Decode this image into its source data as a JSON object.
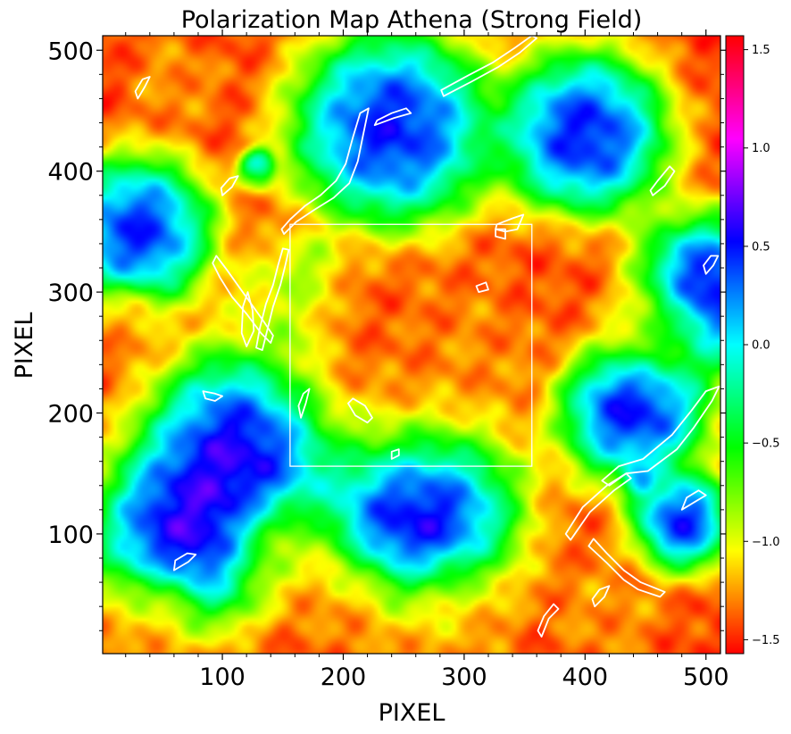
{
  "chart_data": {
    "type": "heatmap",
    "title": "Polarization Map Athena (Strong Field)",
    "xlabel": "PIXEL",
    "ylabel": "PIXEL",
    "xlim": [
      1,
      512
    ],
    "ylim": [
      1,
      512
    ],
    "x_ticks": [
      {
        "value": 100,
        "label": "100"
      },
      {
        "value": 200,
        "label": "200"
      },
      {
        "value": 300,
        "label": "300"
      },
      {
        "value": 400,
        "label": "400"
      },
      {
        "value": 500,
        "label": "500"
      }
    ],
    "y_ticks": [
      {
        "value": 100,
        "label": "100"
      },
      {
        "value": 200,
        "label": "200"
      },
      {
        "value": 300,
        "label": "300"
      },
      {
        "value": 400,
        "label": "400"
      },
      {
        "value": 500,
        "label": "500"
      }
    ],
    "colorbar": {
      "colormap": "hsv",
      "range": [
        -1.5708,
        1.5708
      ],
      "ticks": [
        {
          "value": 1.5,
          "label": "1.5"
        },
        {
          "value": 1.0,
          "label": "1.0"
        },
        {
          "value": 0.5,
          "label": "0.5"
        },
        {
          "value": 0.0,
          "label": "0.0"
        },
        {
          "value": -0.5,
          "label": "−0.5"
        },
        {
          "value": -1.0,
          "label": "−1.0"
        },
        {
          "value": -1.5,
          "label": "−1.5"
        }
      ]
    },
    "features": [
      {
        "x": 310,
        "y": 255,
        "v": -1.2,
        "r": 45
      },
      {
        "x": 160,
        "y": 290,
        "v": -0.8,
        "r": 30
      },
      {
        "x": 170,
        "y": 320,
        "v": -0.7,
        "r": 22
      },
      {
        "x": 155,
        "y": 255,
        "v": -0.7,
        "r": 20
      },
      {
        "x": 140,
        "y": 300,
        "v": -0.9,
        "r": 25
      },
      {
        "x": 130,
        "y": 405,
        "v": 0.6,
        "r": 10
      },
      {
        "x": 125,
        "y": 395,
        "v": -0.6,
        "r": 10
      },
      {
        "x": 445,
        "y": 145,
        "v": 0.5,
        "r": 10
      },
      {
        "x": 30,
        "y": 350,
        "v": 1.1,
        "r": 45
      },
      {
        "x": 240,
        "y": 435,
        "v": 1.15,
        "r": 60
      },
      {
        "x": 400,
        "y": 430,
        "v": 1.15,
        "r": 50
      },
      {
        "x": 70,
        "y": 100,
        "v": 1.25,
        "r": 55
      },
      {
        "x": 440,
        "y": 205,
        "v": 1.2,
        "r": 45
      },
      {
        "x": 480,
        "y": 110,
        "v": 1.1,
        "r": 30
      },
      {
        "x": 120,
        "y": 170,
        "v": 1.3,
        "r": 60
      },
      {
        "x": 500,
        "y": 300,
        "v": 1.3,
        "r": 45
      },
      {
        "x": 260,
        "y": 120,
        "v": 1.4,
        "r": 60
      },
      {
        "x": 60,
        "y": 475,
        "v": -1.2,
        "r": 30
      },
      {
        "x": 150,
        "y": 90,
        "v": -1.15,
        "r": 35
      },
      {
        "x": 420,
        "y": 40,
        "v": -1.2,
        "r": 40
      },
      {
        "x": 290,
        "y": 30,
        "v": -1.2,
        "r": 40
      },
      {
        "x": 20,
        "y": 275,
        "v": -1.25,
        "r": 25
      },
      {
        "x": 455,
        "y": 270,
        "v": -1.2,
        "r": 35
      },
      {
        "x": 240,
        "y": 230,
        "v": -1.35,
        "r": 75
      },
      {
        "x": 380,
        "y": 300,
        "v": -1.4,
        "r": 45
      },
      {
        "x": 200,
        "y": 40,
        "v": -1.3,
        "r": 40
      },
      {
        "x": 45,
        "y": 35,
        "v": -1.3,
        "r": 30
      }
    ],
    "overlay_box": {
      "x0": 156,
      "y0": 156,
      "x1": 356,
      "y1": 356
    },
    "contours": [
      [
        [
          120,
          255
        ],
        [
          126,
          268
        ],
        [
          125,
          285
        ],
        [
          121,
          300
        ],
        [
          117,
          288
        ],
        [
          116,
          266
        ]
      ],
      [
        [
          151,
          348
        ],
        [
          161,
          358
        ],
        [
          176,
          368
        ],
        [
          192,
          378
        ],
        [
          205,
          390
        ],
        [
          212,
          408
        ],
        [
          216,
          428
        ],
        [
          221,
          452
        ],
        [
          214,
          448
        ],
        [
          208,
          428
        ],
        [
          202,
          406
        ],
        [
          194,
          392
        ],
        [
          181,
          380
        ],
        [
          168,
          371
        ],
        [
          156,
          360
        ],
        [
          149,
          352
        ]
      ],
      [
        [
          95,
          330
        ],
        [
          104,
          318
        ],
        [
          114,
          304
        ],
        [
          124,
          290
        ],
        [
          134,
          276
        ],
        [
          142,
          264
        ],
        [
          140,
          258
        ],
        [
          132,
          266
        ],
        [
          120,
          282
        ],
        [
          108,
          296
        ],
        [
          98,
          312
        ],
        [
          92,
          324
        ]
      ],
      [
        [
          150,
          336
        ],
        [
          146,
          322
        ],
        [
          142,
          306
        ],
        [
          136,
          290
        ],
        [
          131,
          270
        ],
        [
          128,
          254
        ],
        [
          133,
          252
        ],
        [
          137,
          268
        ],
        [
          142,
          288
        ],
        [
          148,
          306
        ],
        [
          152,
          322
        ],
        [
          155,
          335
        ]
      ],
      [
        [
          283,
          462
        ],
        [
          306,
          474
        ],
        [
          328,
          486
        ],
        [
          346,
          498
        ],
        [
          360,
          510
        ],
        [
          356,
          512
        ],
        [
          342,
          502
        ],
        [
          324,
          490
        ],
        [
          303,
          479
        ],
        [
          281,
          467
        ]
      ],
      [
        [
          327,
          356
        ],
        [
          340,
          361
        ],
        [
          349,
          364
        ],
        [
          344,
          352
        ],
        [
          334,
          350
        ],
        [
          326,
          352
        ]
      ],
      [
        [
          208,
          212
        ],
        [
          218,
          206
        ],
        [
          224,
          196
        ],
        [
          220,
          192
        ],
        [
          210,
          198
        ],
        [
          204,
          208
        ]
      ],
      [
        [
          420,
          140
        ],
        [
          434,
          150
        ],
        [
          452,
          152
        ],
        [
          476,
          170
        ],
        [
          490,
          188
        ],
        [
          505,
          210
        ],
        [
          511,
          222
        ],
        [
          500,
          218
        ],
        [
          488,
          202
        ],
        [
          472,
          182
        ],
        [
          448,
          162
        ],
        [
          428,
          156
        ],
        [
          414,
          144
        ]
      ],
      [
        [
          388,
          95
        ],
        [
          404,
          118
        ],
        [
          424,
          136
        ],
        [
          438,
          146
        ],
        [
          434,
          150
        ],
        [
          418,
          140
        ],
        [
          398,
          122
        ],
        [
          384,
          100
        ]
      ],
      [
        [
          403,
          90
        ],
        [
          418,
          76
        ],
        [
          432,
          62
        ],
        [
          444,
          54
        ],
        [
          462,
          48
        ],
        [
          466,
          52
        ],
        [
          446,
          60
        ],
        [
          432,
          70
        ],
        [
          418,
          84
        ],
        [
          407,
          96
        ]
      ],
      [
        [
          364,
          15
        ],
        [
          370,
          30
        ],
        [
          378,
          38
        ],
        [
          374,
          42
        ],
        [
          366,
          32
        ],
        [
          361,
          20
        ]
      ],
      [
        [
          326,
          346
        ],
        [
          334,
          344
        ],
        [
          334,
          352
        ],
        [
          326,
          352
        ]
      ],
      [
        [
          60,
          70
        ],
        [
          72,
          77
        ],
        [
          78,
          83
        ],
        [
          71,
          84
        ],
        [
          61,
          78
        ]
      ],
      [
        [
          165,
          196
        ],
        [
          169,
          208
        ],
        [
          172,
          220
        ],
        [
          167,
          216
        ],
        [
          163,
          206
        ]
      ],
      [
        [
          84,
          218
        ],
        [
          94,
          216
        ],
        [
          100,
          214
        ],
        [
          94,
          210
        ],
        [
          86,
          212
        ]
      ],
      [
        [
          226,
          438
        ],
        [
          242,
          444
        ],
        [
          256,
          448
        ],
        [
          252,
          452
        ],
        [
          240,
          448
        ],
        [
          228,
          442
        ]
      ],
      [
        [
          310,
          305
        ],
        [
          318,
          308
        ],
        [
          320,
          302
        ],
        [
          312,
          300
        ]
      ],
      [
        [
          456,
          380
        ],
        [
          466,
          388
        ],
        [
          474,
          400
        ],
        [
          470,
          404
        ],
        [
          460,
          392
        ],
        [
          454,
          384
        ]
      ],
      [
        [
          100,
          380
        ],
        [
          108,
          387
        ],
        [
          113,
          396
        ],
        [
          106,
          394
        ],
        [
          99,
          386
        ]
      ],
      [
        [
          30,
          460
        ],
        [
          36,
          470
        ],
        [
          40,
          478
        ],
        [
          34,
          476
        ],
        [
          28,
          466
        ]
      ],
      [
        [
          500,
          315
        ],
        [
          506,
          322
        ],
        [
          510,
          330
        ],
        [
          504,
          330
        ],
        [
          498,
          322
        ]
      ],
      [
        [
          480,
          120
        ],
        [
          490,
          126
        ],
        [
          500,
          132
        ],
        [
          494,
          136
        ],
        [
          484,
          130
        ]
      ],
      [
        [
          240,
          162
        ],
        [
          246,
          165
        ],
        [
          246,
          170
        ],
        [
          240,
          168
        ]
      ],
      [
        [
          408,
          40
        ],
        [
          416,
          48
        ],
        [
          420,
          57
        ],
        [
          412,
          54
        ],
        [
          406,
          46
        ]
      ]
    ]
  }
}
